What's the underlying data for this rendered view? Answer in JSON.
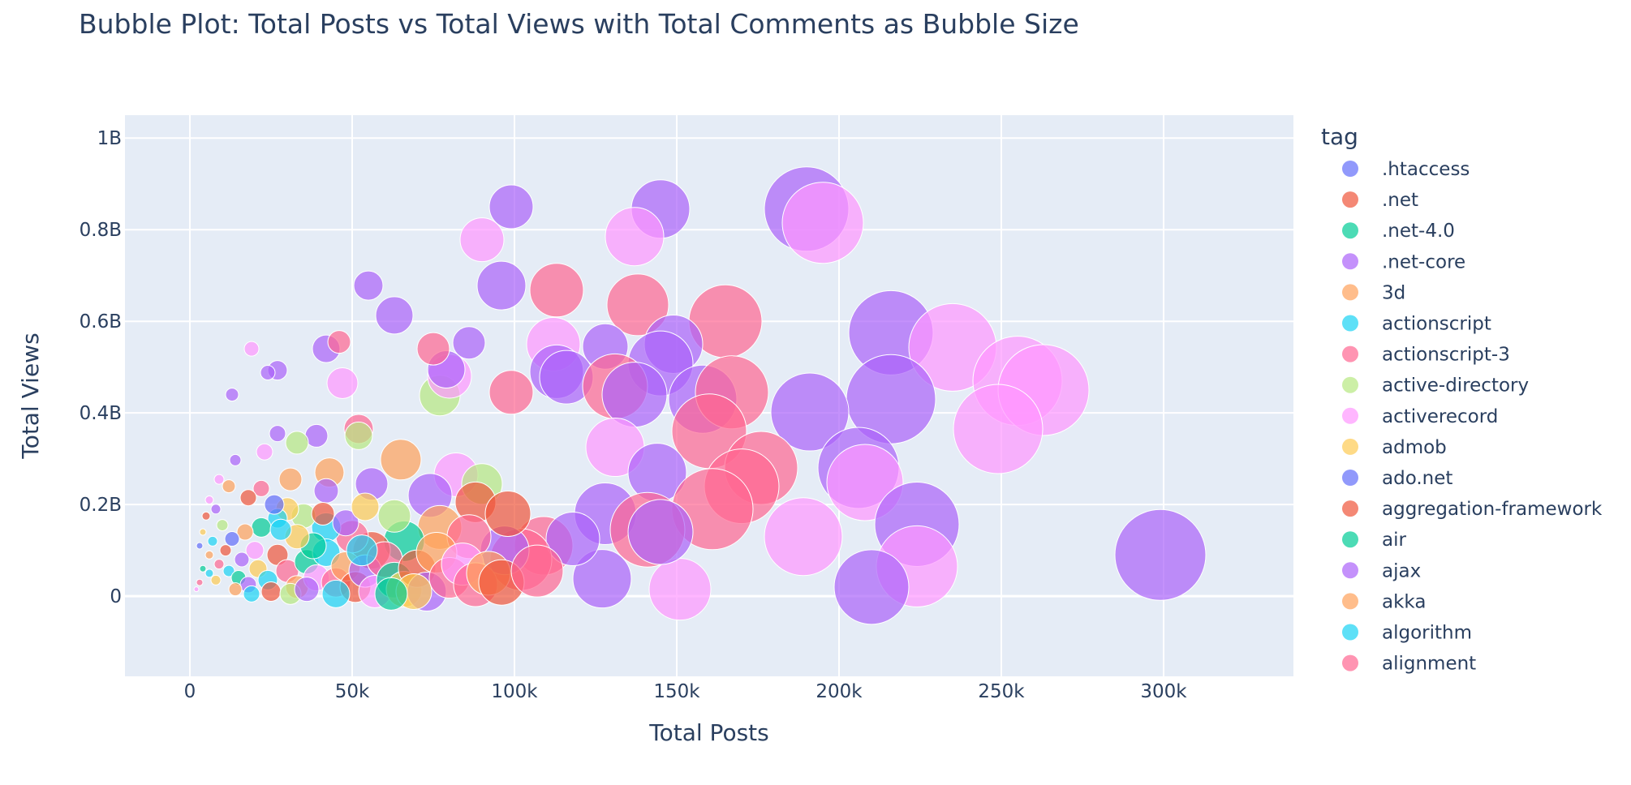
{
  "chart_data": {
    "type": "scatter",
    "title": "Bubble Plot: Total Posts vs Total Views with Total Comments as Bubble Size",
    "xlabel": "Total Posts",
    "ylabel": "Total Views",
    "xlim": [
      -20000,
      340000
    ],
    "ylim": [
      -175000000,
      1050000000
    ],
    "x_ticks": [
      {
        "v": 0,
        "label": "0"
      },
      {
        "v": 50000,
        "label": "50k"
      },
      {
        "v": 100000,
        "label": "100k"
      },
      {
        "v": 150000,
        "label": "150k"
      },
      {
        "v": 200000,
        "label": "200k"
      },
      {
        "v": 250000,
        "label": "250k"
      },
      {
        "v": 300000,
        "label": "300k"
      }
    ],
    "y_ticks": [
      {
        "v": 0,
        "label": "0"
      },
      {
        "v": 200000000,
        "label": "0.2B"
      },
      {
        "v": 400000000,
        "label": "0.4B"
      },
      {
        "v": 600000000,
        "label": "0.6B"
      },
      {
        "v": 800000000,
        "label": "0.8B"
      },
      {
        "v": 1000000000,
        "label": "1B"
      }
    ],
    "grid": true,
    "legend_position": "right",
    "legend_title": "tag",
    "size_variable": "Total Comments",
    "palette": [
      "#636efa",
      "#EF553B",
      "#00cc96",
      "#ab63fa",
      "#FFA15A",
      "#19d3f3",
      "#FF6692",
      "#B6E880",
      "#FF97FF",
      "#FECB52"
    ],
    "legend": [
      {
        "name": ".htaccess",
        "color": "#636efa"
      },
      {
        "name": ".net",
        "color": "#EF553B"
      },
      {
        "name": ".net-4.0",
        "color": "#00cc96"
      },
      {
        "name": ".net-core",
        "color": "#ab63fa"
      },
      {
        "name": "3d",
        "color": "#FFA15A"
      },
      {
        "name": "actionscript",
        "color": "#19d3f3"
      },
      {
        "name": "actionscript-3",
        "color": "#FF6692"
      },
      {
        "name": "active-directory",
        "color": "#B6E880"
      },
      {
        "name": "activerecord",
        "color": "#FF97FF"
      },
      {
        "name": "admob",
        "color": "#FECB52"
      },
      {
        "name": "ado.net",
        "color": "#636efa"
      },
      {
        "name": "aggregation-framework",
        "color": "#EF553B"
      },
      {
        "name": "air",
        "color": "#00cc96"
      },
      {
        "name": "ajax",
        "color": "#ab63fa"
      },
      {
        "name": "akka",
        "color": "#FFA15A"
      },
      {
        "name": "algorithm",
        "color": "#19d3f3"
      },
      {
        "name": "alignment",
        "color": "#FF6692"
      }
    ],
    "points": [
      {
        "x": 299000,
        "y": 90000000,
        "c": 3,
        "s": 56
      },
      {
        "x": 190000,
        "y": 845000000,
        "c": 3,
        "s": 52
      },
      {
        "x": 195000,
        "y": 815000000,
        "c": 8,
        "s": 50
      },
      {
        "x": 145000,
        "y": 845000000,
        "c": 3,
        "s": 36
      },
      {
        "x": 99000,
        "y": 850000000,
        "c": 3,
        "s": 27
      },
      {
        "x": 137000,
        "y": 785000000,
        "c": 8,
        "s": 36
      },
      {
        "x": 90000,
        "y": 778000000,
        "c": 8,
        "s": 27
      },
      {
        "x": 96000,
        "y": 678000000,
        "c": 3,
        "s": 30
      },
      {
        "x": 113000,
        "y": 668000000,
        "c": 6,
        "s": 33
      },
      {
        "x": 55000,
        "y": 678000000,
        "c": 3,
        "s": 18
      },
      {
        "x": 63000,
        "y": 613000000,
        "c": 3,
        "s": 23
      },
      {
        "x": 138000,
        "y": 636000000,
        "c": 6,
        "s": 38
      },
      {
        "x": 165000,
        "y": 600000000,
        "c": 6,
        "s": 45
      },
      {
        "x": 216000,
        "y": 575000000,
        "c": 3,
        "s": 52
      },
      {
        "x": 235000,
        "y": 543000000,
        "c": 8,
        "s": 54
      },
      {
        "x": 255000,
        "y": 470000000,
        "c": 8,
        "s": 55
      },
      {
        "x": 263000,
        "y": 450000000,
        "c": 8,
        "s": 56
      },
      {
        "x": 249000,
        "y": 365000000,
        "c": 8,
        "s": 55
      },
      {
        "x": 216000,
        "y": 430000000,
        "c": 3,
        "s": 55
      },
      {
        "x": 191000,
        "y": 402000000,
        "c": 3,
        "s": 48
      },
      {
        "x": 206000,
        "y": 280000000,
        "c": 3,
        "s": 50
      },
      {
        "x": 208000,
        "y": 248000000,
        "c": 8,
        "s": 47
      },
      {
        "x": 189000,
        "y": 130000000,
        "c": 8,
        "s": 48
      },
      {
        "x": 224000,
        "y": 157000000,
        "c": 3,
        "s": 52
      },
      {
        "x": 224000,
        "y": 65000000,
        "c": 8,
        "s": 50
      },
      {
        "x": 210000,
        "y": 20000000,
        "c": 3,
        "s": 46
      },
      {
        "x": 151000,
        "y": 15000000,
        "c": 8,
        "s": 38
      },
      {
        "x": 127000,
        "y": 38000000,
        "c": 3,
        "s": 36
      },
      {
        "x": 128000,
        "y": 545000000,
        "c": 3,
        "s": 28
      },
      {
        "x": 112000,
        "y": 550000000,
        "c": 8,
        "s": 33
      },
      {
        "x": 149000,
        "y": 550000000,
        "c": 3,
        "s": 36
      },
      {
        "x": 145000,
        "y": 508000000,
        "c": 3,
        "s": 40
      },
      {
        "x": 113000,
        "y": 490000000,
        "c": 3,
        "s": 33
      },
      {
        "x": 116000,
        "y": 478000000,
        "c": 3,
        "s": 33
      },
      {
        "x": 131000,
        "y": 458000000,
        "c": 6,
        "s": 40
      },
      {
        "x": 137000,
        "y": 440000000,
        "c": 3,
        "s": 40
      },
      {
        "x": 158000,
        "y": 430000000,
        "c": 3,
        "s": 42
      },
      {
        "x": 167000,
        "y": 445000000,
        "c": 6,
        "s": 45
      },
      {
        "x": 160000,
        "y": 360000000,
        "c": 6,
        "s": 46
      },
      {
        "x": 131000,
        "y": 325000000,
        "c": 8,
        "s": 36
      },
      {
        "x": 144000,
        "y": 270000000,
        "c": 3,
        "s": 36
      },
      {
        "x": 176000,
        "y": 280000000,
        "c": 6,
        "s": 45
      },
      {
        "x": 170000,
        "y": 240000000,
        "c": 6,
        "s": 46
      },
      {
        "x": 161000,
        "y": 190000000,
        "c": 6,
        "s": 50
      },
      {
        "x": 128000,
        "y": 180000000,
        "c": 3,
        "s": 38
      },
      {
        "x": 141000,
        "y": 145000000,
        "c": 6,
        "s": 46
      },
      {
        "x": 145000,
        "y": 140000000,
        "c": 3,
        "s": 40
      },
      {
        "x": 109000,
        "y": 110000000,
        "c": 6,
        "s": 36
      },
      {
        "x": 118000,
        "y": 125000000,
        "c": 3,
        "s": 33
      },
      {
        "x": 102000,
        "y": 80000000,
        "c": 6,
        "s": 38
      },
      {
        "x": 97000,
        "y": 100000000,
        "c": 3,
        "s": 30
      },
      {
        "x": 99000,
        "y": 445000000,
        "c": 6,
        "s": 27
      },
      {
        "x": 77000,
        "y": 438000000,
        "c": 7,
        "s": 25
      },
      {
        "x": 80000,
        "y": 480000000,
        "c": 8,
        "s": 27
      },
      {
        "x": 79000,
        "y": 495000000,
        "c": 3,
        "s": 23
      },
      {
        "x": 86000,
        "y": 553000000,
        "c": 3,
        "s": 20
      },
      {
        "x": 75000,
        "y": 540000000,
        "c": 6,
        "s": 20
      },
      {
        "x": 47000,
        "y": 465000000,
        "c": 8,
        "s": 19
      },
      {
        "x": 42000,
        "y": 540000000,
        "c": 3,
        "s": 17
      },
      {
        "x": 46000,
        "y": 555000000,
        "c": 6,
        "s": 14
      },
      {
        "x": 27000,
        "y": 493000000,
        "c": 3,
        "s": 12
      },
      {
        "x": 24000,
        "y": 488000000,
        "c": 3,
        "s": 9
      },
      {
        "x": 19000,
        "y": 540000000,
        "c": 8,
        "s": 9
      },
      {
        "x": 13000,
        "y": 440000000,
        "c": 3,
        "s": 8
      },
      {
        "x": 52000,
        "y": 365000000,
        "c": 6,
        "s": 18
      },
      {
        "x": 52000,
        "y": 350000000,
        "c": 7,
        "s": 17
      },
      {
        "x": 39000,
        "y": 350000000,
        "c": 3,
        "s": 14
      },
      {
        "x": 33000,
        "y": 335000000,
        "c": 7,
        "s": 14
      },
      {
        "x": 27000,
        "y": 355000000,
        "c": 3,
        "s": 10
      },
      {
        "x": 23000,
        "y": 315000000,
        "c": 8,
        "s": 10
      },
      {
        "x": 14000,
        "y": 297000000,
        "c": 3,
        "s": 7
      },
      {
        "x": 65000,
        "y": 298000000,
        "c": 4,
        "s": 25
      },
      {
        "x": 82000,
        "y": 265000000,
        "c": 8,
        "s": 27
      },
      {
        "x": 90000,
        "y": 245000000,
        "c": 7,
        "s": 25
      },
      {
        "x": 56000,
        "y": 245000000,
        "c": 3,
        "s": 20
      },
      {
        "x": 43000,
        "y": 270000000,
        "c": 4,
        "s": 18
      },
      {
        "x": 42000,
        "y": 230000000,
        "c": 3,
        "s": 15
      },
      {
        "x": 31000,
        "y": 255000000,
        "c": 4,
        "s": 14
      },
      {
        "x": 22000,
        "y": 235000000,
        "c": 6,
        "s": 10
      },
      {
        "x": 18000,
        "y": 215000000,
        "c": 1,
        "s": 10
      },
      {
        "x": 12000,
        "y": 240000000,
        "c": 4,
        "s": 8
      },
      {
        "x": 9000,
        "y": 255000000,
        "c": 8,
        "s": 6
      },
      {
        "x": 74000,
        "y": 220000000,
        "c": 3,
        "s": 27
      },
      {
        "x": 88000,
        "y": 205000000,
        "c": 1,
        "s": 25
      },
      {
        "x": 98000,
        "y": 180000000,
        "c": 1,
        "s": 28
      },
      {
        "x": 77000,
        "y": 150000000,
        "c": 4,
        "s": 27
      },
      {
        "x": 86000,
        "y": 130000000,
        "c": 6,
        "s": 27
      },
      {
        "x": 66000,
        "y": 120000000,
        "c": 2,
        "s": 25
      },
      {
        "x": 56000,
        "y": 100000000,
        "c": 1,
        "s": 23
      },
      {
        "x": 50000,
        "y": 130000000,
        "c": 6,
        "s": 20
      },
      {
        "x": 42000,
        "y": 150000000,
        "c": 5,
        "s": 18
      },
      {
        "x": 35000,
        "y": 175000000,
        "c": 7,
        "s": 15
      },
      {
        "x": 30000,
        "y": 190000000,
        "c": 9,
        "s": 14
      },
      {
        "x": 27000,
        "y": 170000000,
        "c": 5,
        "s": 12
      },
      {
        "x": 22000,
        "y": 150000000,
        "c": 2,
        "s": 12
      },
      {
        "x": 17000,
        "y": 140000000,
        "c": 4,
        "s": 10
      },
      {
        "x": 13000,
        "y": 125000000,
        "c": 0,
        "s": 9
      },
      {
        "x": 10000,
        "y": 155000000,
        "c": 7,
        "s": 7
      },
      {
        "x": 8000,
        "y": 190000000,
        "c": 3,
        "s": 6
      },
      {
        "x": 6000,
        "y": 210000000,
        "c": 8,
        "s": 5
      },
      {
        "x": 5000,
        "y": 175000000,
        "c": 1,
        "s": 5
      },
      {
        "x": 4000,
        "y": 140000000,
        "c": 9,
        "s": 4
      },
      {
        "x": 3000,
        "y": 110000000,
        "c": 0,
        "s": 4
      },
      {
        "x": 6000,
        "y": 90000000,
        "c": 4,
        "s": 5
      },
      {
        "x": 9000,
        "y": 70000000,
        "c": 6,
        "s": 6
      },
      {
        "x": 12000,
        "y": 55000000,
        "c": 5,
        "s": 7
      },
      {
        "x": 15000,
        "y": 40000000,
        "c": 2,
        "s": 9
      },
      {
        "x": 18000,
        "y": 25000000,
        "c": 3,
        "s": 10
      },
      {
        "x": 21000,
        "y": 60000000,
        "c": 9,
        "s": 11
      },
      {
        "x": 24000,
        "y": 35000000,
        "c": 5,
        "s": 12
      },
      {
        "x": 27000,
        "y": 90000000,
        "c": 1,
        "s": 13
      },
      {
        "x": 30000,
        "y": 55000000,
        "c": 6,
        "s": 14
      },
      {
        "x": 33000,
        "y": 20000000,
        "c": 4,
        "s": 14
      },
      {
        "x": 36000,
        "y": 75000000,
        "c": 2,
        "s": 15
      },
      {
        "x": 39000,
        "y": 40000000,
        "c": 8,
        "s": 16
      },
      {
        "x": 42000,
        "y": 95000000,
        "c": 5,
        "s": 17
      },
      {
        "x": 45000,
        "y": 30000000,
        "c": 6,
        "s": 18
      },
      {
        "x": 48000,
        "y": 65000000,
        "c": 4,
        "s": 18
      },
      {
        "x": 51000,
        "y": 20000000,
        "c": 1,
        "s": 19
      },
      {
        "x": 54000,
        "y": 55000000,
        "c": 3,
        "s": 20
      },
      {
        "x": 57000,
        "y": 10000000,
        "c": 8,
        "s": 20
      },
      {
        "x": 60000,
        "y": 80000000,
        "c": 6,
        "s": 22
      },
      {
        "x": 63000,
        "y": 35000000,
        "c": 2,
        "s": 22
      },
      {
        "x": 66000,
        "y": 15000000,
        "c": 9,
        "s": 22
      },
      {
        "x": 70000,
        "y": 60000000,
        "c": 1,
        "s": 23
      },
      {
        "x": 73000,
        "y": 10000000,
        "c": 3,
        "s": 24
      },
      {
        "x": 76000,
        "y": 95000000,
        "c": 4,
        "s": 25
      },
      {
        "x": 80000,
        "y": 40000000,
        "c": 6,
        "s": 25
      },
      {
        "x": 84000,
        "y": 70000000,
        "c": 8,
        "s": 26
      },
      {
        "x": 88000,
        "y": 25000000,
        "c": 6,
        "s": 27
      },
      {
        "x": 92000,
        "y": 50000000,
        "c": 4,
        "s": 27
      },
      {
        "x": 96000,
        "y": 30000000,
        "c": 1,
        "s": 28
      },
      {
        "x": 107000,
        "y": 55000000,
        "c": 6,
        "s": 32
      },
      {
        "x": 69000,
        "y": 10000000,
        "c": 9,
        "s": 22
      },
      {
        "x": 62000,
        "y": 5000000,
        "c": 2,
        "s": 20
      },
      {
        "x": 45000,
        "y": 5000000,
        "c": 5,
        "s": 17
      },
      {
        "x": 38000,
        "y": 110000000,
        "c": 2,
        "s": 16
      },
      {
        "x": 33000,
        "y": 130000000,
        "c": 9,
        "s": 15
      },
      {
        "x": 28000,
        "y": 145000000,
        "c": 5,
        "s": 13
      },
      {
        "x": 41000,
        "y": 180000000,
        "c": 1,
        "s": 14
      },
      {
        "x": 48000,
        "y": 160000000,
        "c": 3,
        "s": 16
      },
      {
        "x": 54000,
        "y": 195000000,
        "c": 9,
        "s": 17
      },
      {
        "x": 63000,
        "y": 175000000,
        "c": 7,
        "s": 20
      },
      {
        "x": 20000,
        "y": 100000000,
        "c": 8,
        "s": 11
      },
      {
        "x": 16000,
        "y": 80000000,
        "c": 3,
        "s": 9
      },
      {
        "x": 11000,
        "y": 100000000,
        "c": 1,
        "s": 7
      },
      {
        "x": 7000,
        "y": 120000000,
        "c": 5,
        "s": 6
      },
      {
        "x": 4000,
        "y": 60000000,
        "c": 2,
        "s": 4
      },
      {
        "x": 3000,
        "y": 30000000,
        "c": 6,
        "s": 4
      },
      {
        "x": 2000,
        "y": 15000000,
        "c": 8,
        "s": 3
      },
      {
        "x": 8000,
        "y": 35000000,
        "c": 9,
        "s": 6
      },
      {
        "x": 14000,
        "y": 15000000,
        "c": 4,
        "s": 8
      },
      {
        "x": 19000,
        "y": 5000000,
        "c": 5,
        "s": 10
      },
      {
        "x": 25000,
        "y": 10000000,
        "c": 1,
        "s": 12
      },
      {
        "x": 31000,
        "y": 5000000,
        "c": 7,
        "s": 13
      },
      {
        "x": 36000,
        "y": 15000000,
        "c": 3,
        "s": 15
      },
      {
        "x": 53000,
        "y": 100000000,
        "c": 5,
        "s": 19
      },
      {
        "x": 26000,
        "y": 200000000,
        "c": 0,
        "s": 12
      },
      {
        "x": 6000,
        "y": 50000000,
        "c": 5,
        "s": 5
      }
    ]
  }
}
